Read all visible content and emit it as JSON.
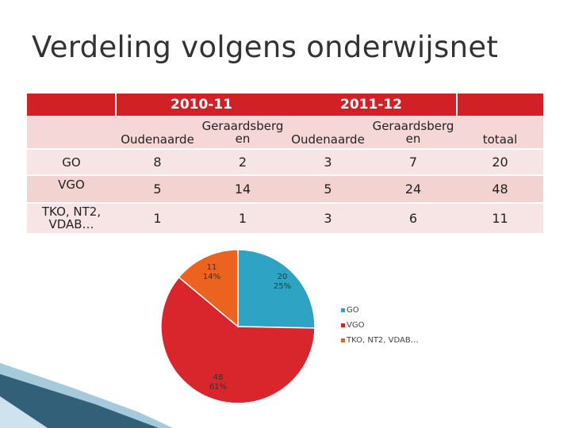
{
  "slide": {
    "title": "Verdeling volgens onderwijsnet"
  },
  "table": {
    "year1": "2010-11",
    "year2": "2011-12",
    "sub_headers": {
      "y1_oud": "Oudenaarde",
      "y1_ger_top": "Geraardsberg",
      "y1_ger_bot": "en",
      "y2_oud": "Oudenaarde",
      "y2_ger_top": "Geraardsberg",
      "y2_ger_bot": "en",
      "total": "totaal"
    },
    "rows": [
      {
        "label": "GO",
        "values": [
          "8",
          "2",
          "3",
          "7",
          "20"
        ]
      },
      {
        "label": "VGO",
        "values": [
          "5",
          "14",
          "5",
          "24",
          "48"
        ]
      },
      {
        "label": "TKO, NT2, VDAB…",
        "values": [
          "1",
          "1",
          "3",
          "6",
          "11"
        ]
      }
    ]
  },
  "colors": {
    "header_red": "#d22027",
    "go": "#2fa3c4",
    "vgo": "#d9252c",
    "tko": "#ec6320"
  },
  "chart_data": {
    "type": "pie",
    "categories": [
      "GO",
      "VGO",
      "TKO, NT2, VDAB…"
    ],
    "values": [
      20,
      48,
      11
    ],
    "data_labels": [
      {
        "value": "20",
        "percent": "25%"
      },
      {
        "value": "48",
        "percent": "61%"
      },
      {
        "value": "11",
        "percent": "14%"
      }
    ],
    "legend_position": "right"
  }
}
